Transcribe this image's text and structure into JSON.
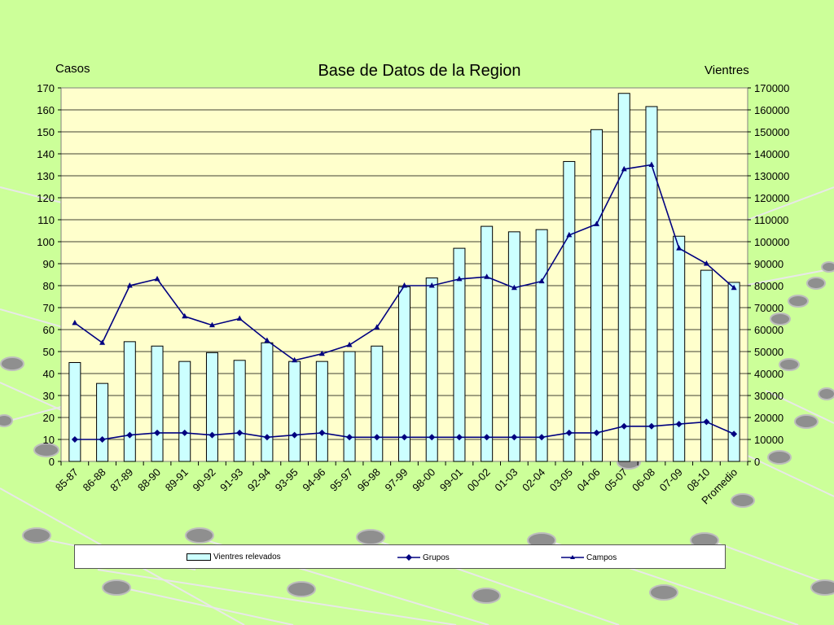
{
  "chart_data": {
    "type": "bar",
    "title": "Base de Datos de la Region",
    "ylabel_left": "Casos",
    "ylabel_right": "Vientres",
    "categories": [
      "85-87",
      "86-88",
      "87-89",
      "88-90",
      "89-91",
      "90-92",
      "91-93",
      "92-94",
      "93-95",
      "94-96",
      "95-97",
      "96-98",
      "97-99",
      "98-00",
      "99-01",
      "00-02",
      "01-03",
      "02-04",
      "03-05",
      "04-06",
      "05-07",
      "06-08",
      "07-09",
      "08-10",
      "Promedio"
    ],
    "ylim_left": [
      0,
      170
    ],
    "ylim_right": [
      0,
      170000
    ],
    "yticks_left": [
      "0",
      "10",
      "20",
      "30",
      "40",
      "50",
      "60",
      "70",
      "80",
      "90",
      "100",
      "110",
      "120",
      "130",
      "140",
      "150",
      "160",
      "170"
    ],
    "yticks_right": [
      "0",
      "10000",
      "20000",
      "30000",
      "40000",
      "50000",
      "60000",
      "70000",
      "80000",
      "90000",
      "100000",
      "110000",
      "120000",
      "130000",
      "140000",
      "150000",
      "160000",
      "170000"
    ],
    "grid": true,
    "legend_position": "bottom",
    "series": [
      {
        "name": "Vientres relevados",
        "type": "bar",
        "axis": "right",
        "color": "#ccffff",
        "values": [
          45000,
          35500,
          54500,
          52500,
          45500,
          49500,
          46000,
          54000,
          45500,
          45500,
          50000,
          52500,
          79500,
          83500,
          97000,
          107000,
          104500,
          105500,
          136500,
          151000,
          167500,
          161500,
          102500,
          87000,
          81500
        ]
      },
      {
        "name": "Grupos",
        "type": "line",
        "marker": "diamond",
        "axis": "left",
        "color": "#000080",
        "values": [
          10,
          10,
          12,
          13,
          13,
          12,
          13,
          11,
          12,
          13,
          11,
          11,
          11,
          11,
          11,
          11,
          11,
          11,
          13,
          13,
          16,
          16,
          17,
          18,
          12.5
        ]
      },
      {
        "name": "Campos",
        "type": "line",
        "marker": "triangle",
        "axis": "left",
        "color": "#000080",
        "values": [
          63,
          54,
          80,
          83,
          66,
          62,
          65,
          55,
          46,
          49,
          53,
          61,
          80,
          80,
          83,
          84,
          79,
          82,
          103,
          108,
          133,
          135,
          97,
          90,
          79
        ]
      }
    ]
  }
}
